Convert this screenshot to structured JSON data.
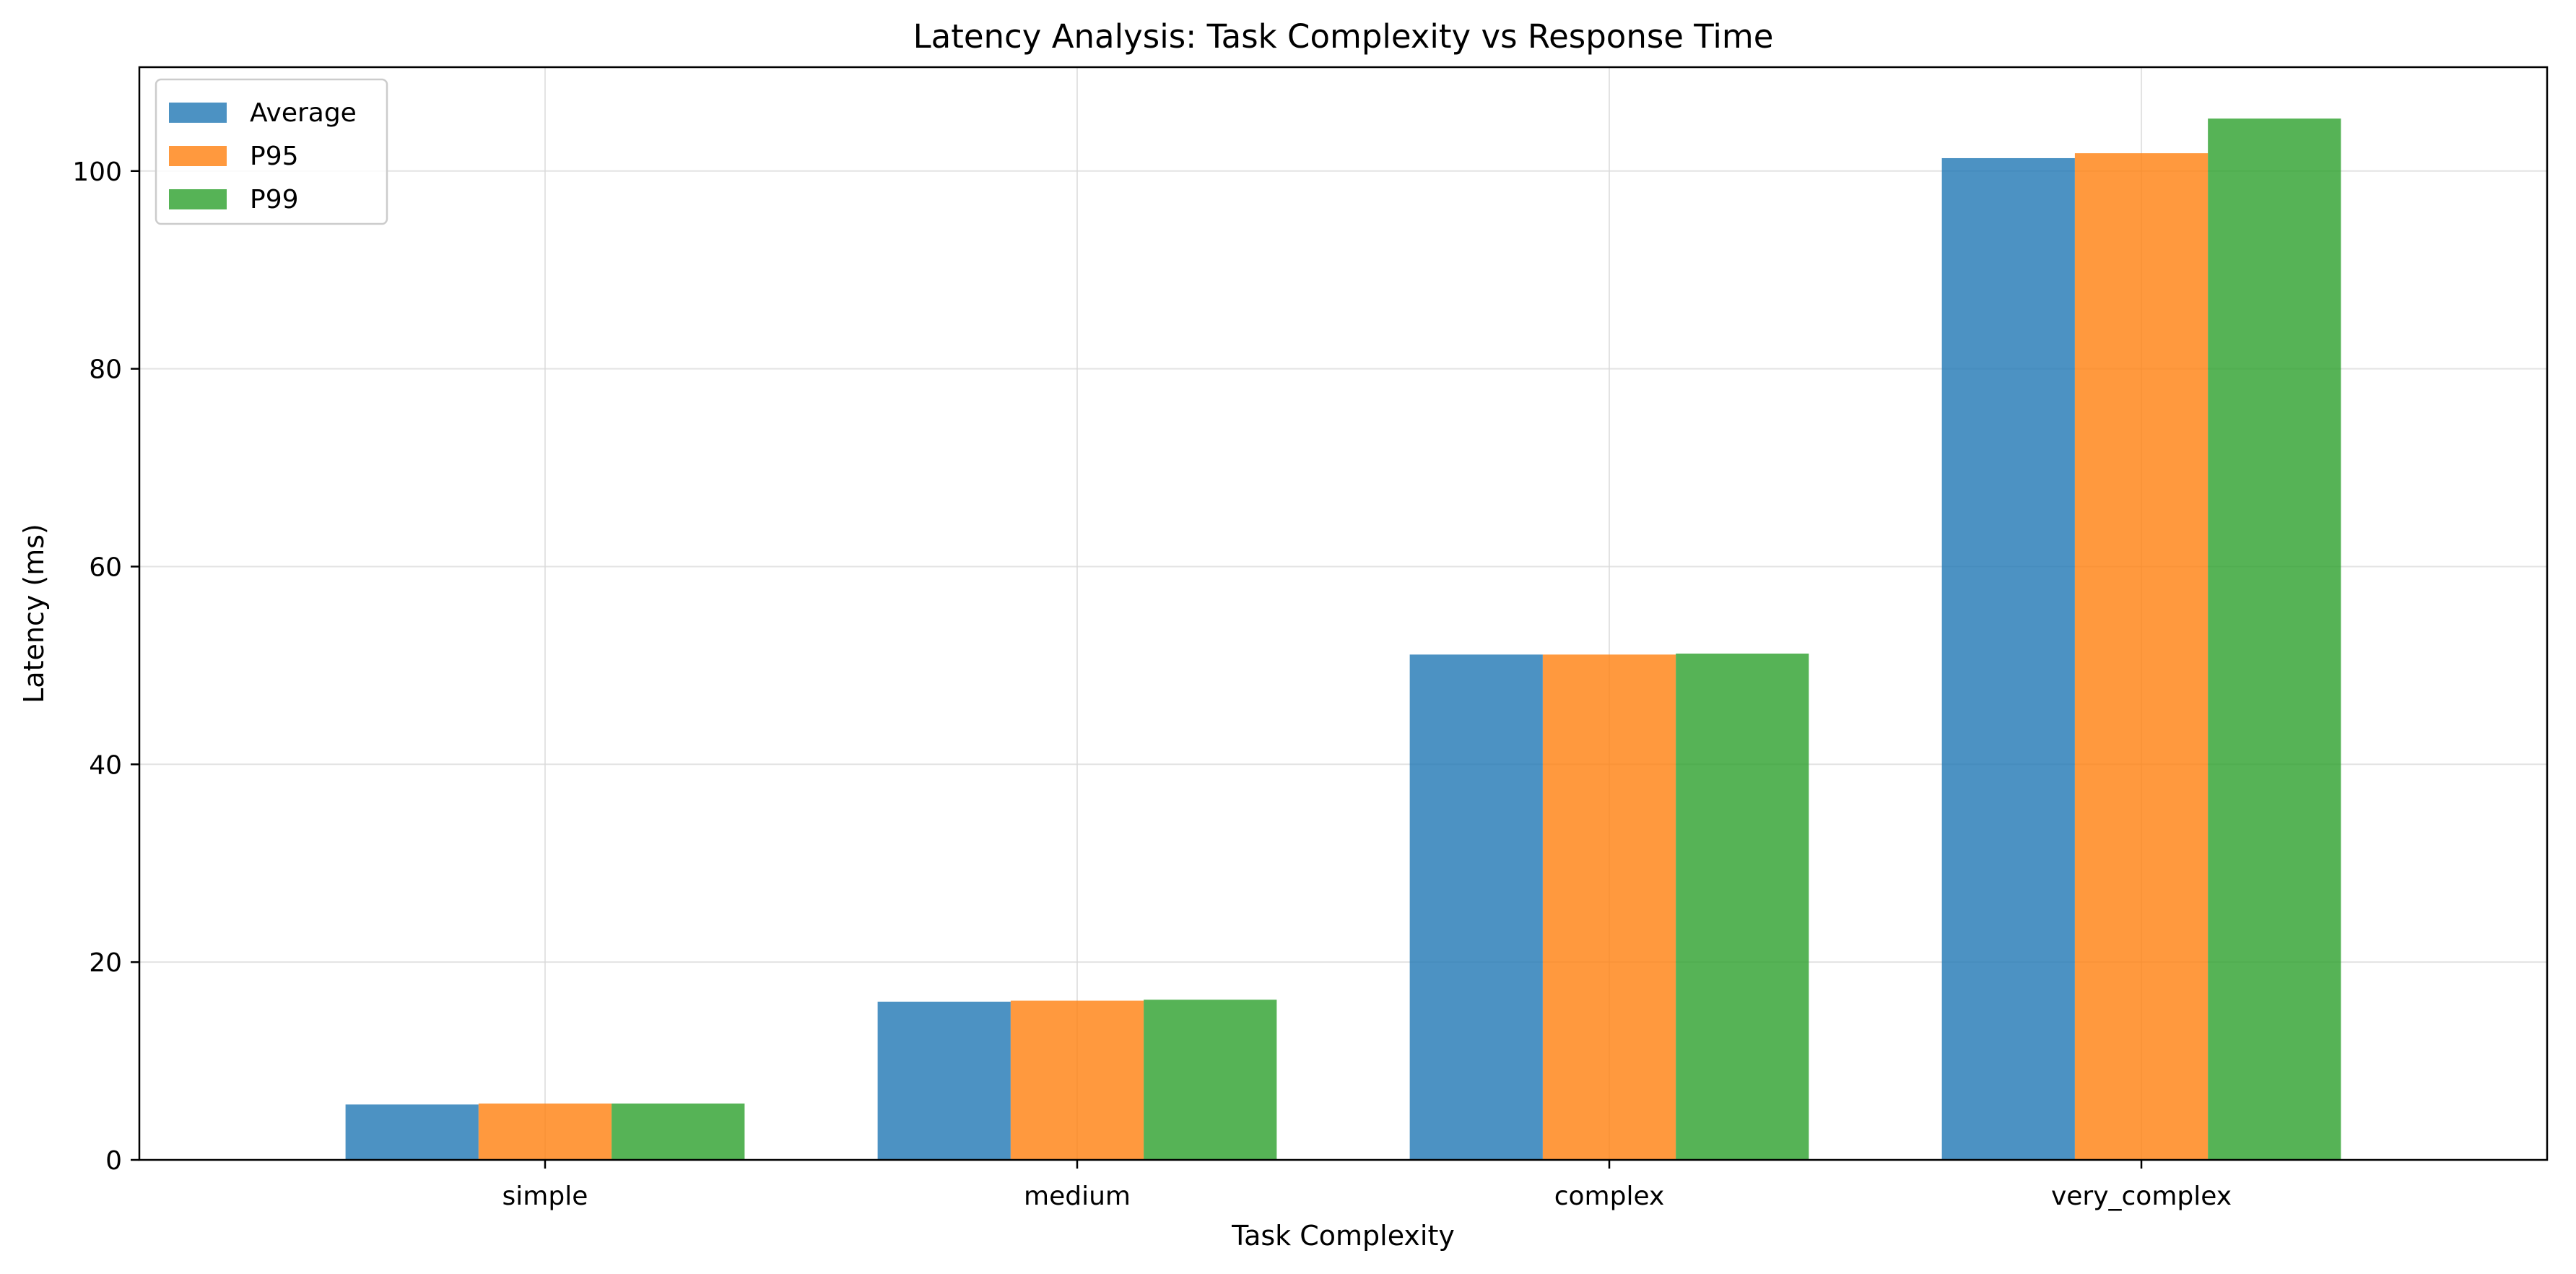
{
  "chart_data": {
    "type": "bar",
    "title": "Latency Analysis: Task Complexity vs Response Time",
    "xlabel": "Task Complexity",
    "ylabel": "Latency (ms)",
    "categories": [
      "simple",
      "medium",
      "complex",
      "very_complex"
    ],
    "series": [
      {
        "name": "Average",
        "color": "#1f77b4",
        "values": [
          5.6,
          16.0,
          51.1,
          101.3
        ]
      },
      {
        "name": "P95",
        "color": "#ff7f0e",
        "values": [
          5.7,
          16.1,
          51.1,
          101.8
        ]
      },
      {
        "name": "P99",
        "color": "#2ca02c",
        "values": [
          5.7,
          16.2,
          51.2,
          105.3
        ]
      }
    ],
    "ylim": [
      0,
      110.5
    ],
    "yticks": [
      0,
      20,
      40,
      60,
      80,
      100
    ],
    "grid": true,
    "legend_position": "top-left"
  }
}
